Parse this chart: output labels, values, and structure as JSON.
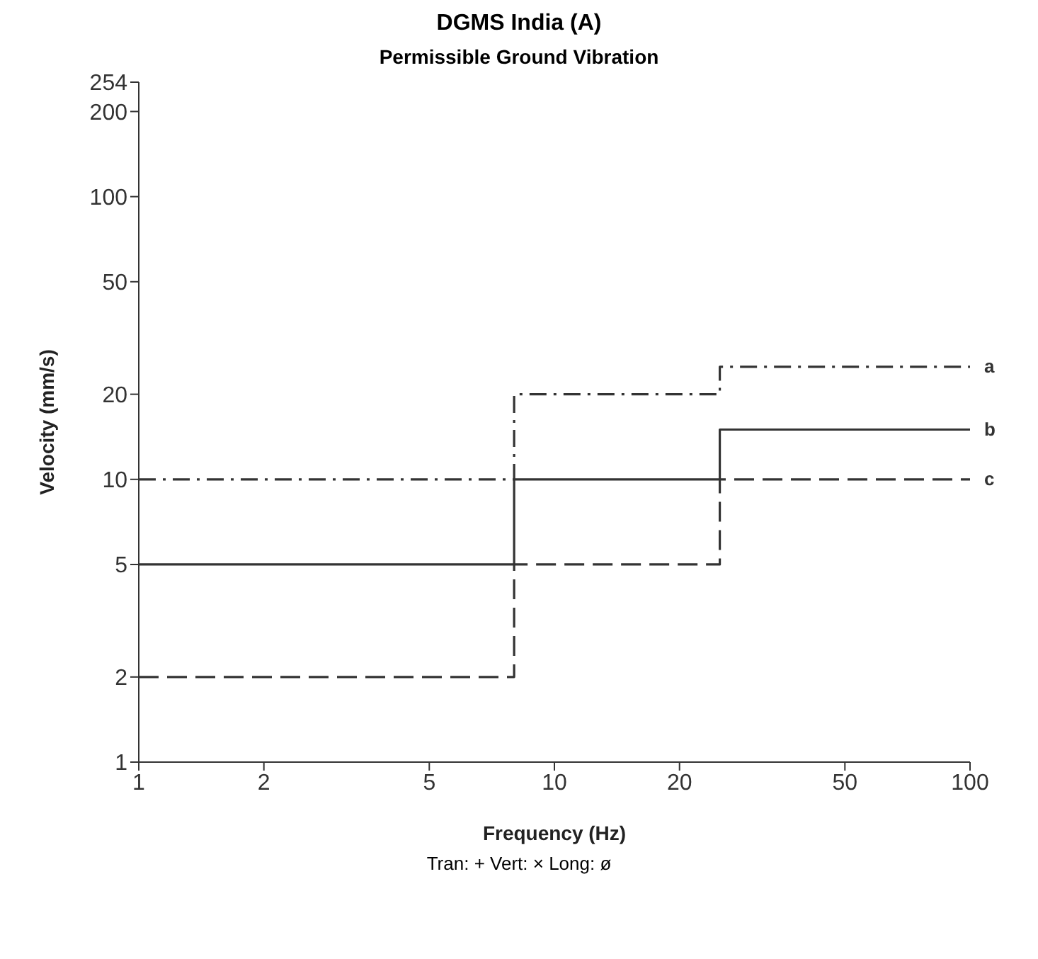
{
  "chart_data": {
    "type": "step",
    "title": "DGMS India (A)",
    "subtitle": "Permissible Ground Vibration",
    "xlabel": "Frequency (Hz)",
    "ylabel": "Velocity (mm/s)",
    "log": "xy",
    "xlim": [
      1,
      100
    ],
    "xticks": [
      1,
      2,
      5,
      10,
      20,
      50,
      100
    ],
    "ylim": [
      1,
      254
    ],
    "yticks": [
      1,
      2,
      5,
      10,
      20,
      50,
      100,
      200,
      254
    ],
    "marker": "none",
    "series": [
      {
        "name": "a",
        "color": "#333333",
        "line_style": "dashdot",
        "x": [
          1,
          8,
          25,
          100
        ],
        "values": [
          10,
          20,
          25,
          25
        ]
      },
      {
        "name": "b",
        "color": "#333333",
        "line_style": "solid",
        "x": [
          1,
          8,
          25,
          100
        ],
        "values": [
          5,
          10,
          15,
          15
        ]
      },
      {
        "name": "c",
        "color": "#333333",
        "line_style": "dashed",
        "x": [
          1,
          8,
          25,
          100
        ],
        "values": [
          2,
          5,
          10,
          10
        ]
      }
    ],
    "annotations": [
      "Tran: + Vert: × Long: ø"
    ]
  }
}
